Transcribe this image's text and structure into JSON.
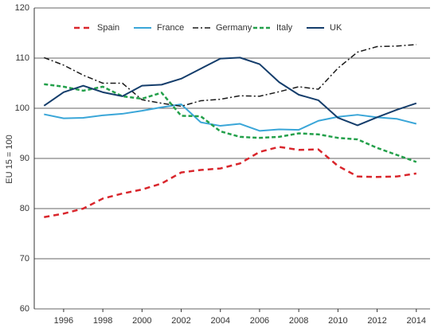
{
  "chart_data": {
    "type": "line",
    "y_label": "EU 15 = 100",
    "x": [
      1995,
      1996,
      1997,
      1998,
      1999,
      2000,
      2001,
      2002,
      2003,
      2004,
      2005,
      2006,
      2007,
      2008,
      2009,
      2010,
      2011,
      2012,
      2013,
      2014
    ],
    "xlim": [
      1994.5,
      2014.7
    ],
    "xticks": [
      1996,
      1998,
      2000,
      2002,
      2004,
      2006,
      2008,
      2010,
      2012,
      2014
    ],
    "ylim": [
      60,
      120
    ],
    "yticks": [
      60,
      70,
      80,
      90,
      100,
      110,
      120
    ],
    "grid": true,
    "legend": "top",
    "series": [
      {
        "name": "Spain",
        "color": "#d9262c",
        "dash": "7,5",
        "width": 2.5,
        "values": [
          78.3,
          79,
          80,
          82,
          83,
          83.8,
          85,
          87.2,
          87.7,
          88,
          89,
          91.3,
          92.3,
          91.7,
          91.8,
          88.5,
          86.4,
          86.3,
          86.4,
          87
        ]
      },
      {
        "name": "France",
        "color": "#3aa6d8",
        "dash": "none",
        "width": 2,
        "values": [
          98.8,
          98,
          98.1,
          98.6,
          98.9,
          99.5,
          100.2,
          100.8,
          97.2,
          96.5,
          96.9,
          95.5,
          95.8,
          95.7,
          97.5,
          98.3,
          98.7,
          98.2,
          97.9,
          96.9
        ]
      },
      {
        "name": "Germany",
        "color": "#1a1a1a",
        "dash": "7,3,2,3",
        "width": 1.5,
        "values": [
          110.1,
          108.6,
          106.6,
          105,
          105,
          101.7,
          101,
          100.4,
          101.5,
          101.8,
          102.5,
          102.4,
          103.3,
          104.3,
          103.8,
          108,
          111.2,
          112.3,
          112.4,
          112.7
        ]
      },
      {
        "name": "Italy",
        "color": "#23a04a",
        "dash": "5,3",
        "width": 2.5,
        "values": [
          104.8,
          104.3,
          103.5,
          104.3,
          102.4,
          101.9,
          103.1,
          98.5,
          98.4,
          95.4,
          94.3,
          94.1,
          94.3,
          95,
          94.8,
          94.1,
          93.8,
          92.1,
          90.7,
          89.3
        ]
      },
      {
        "name": "UK",
        "color": "#143d6b",
        "dash": "none",
        "width": 2,
        "values": [
          100.5,
          103.2,
          104.5,
          103.2,
          102.4,
          104.5,
          104.7,
          105.9,
          107.9,
          109.9,
          110.1,
          108.8,
          105.2,
          102.7,
          101.6,
          98.1,
          96.6,
          98.2,
          99.7,
          101
        ]
      }
    ]
  }
}
